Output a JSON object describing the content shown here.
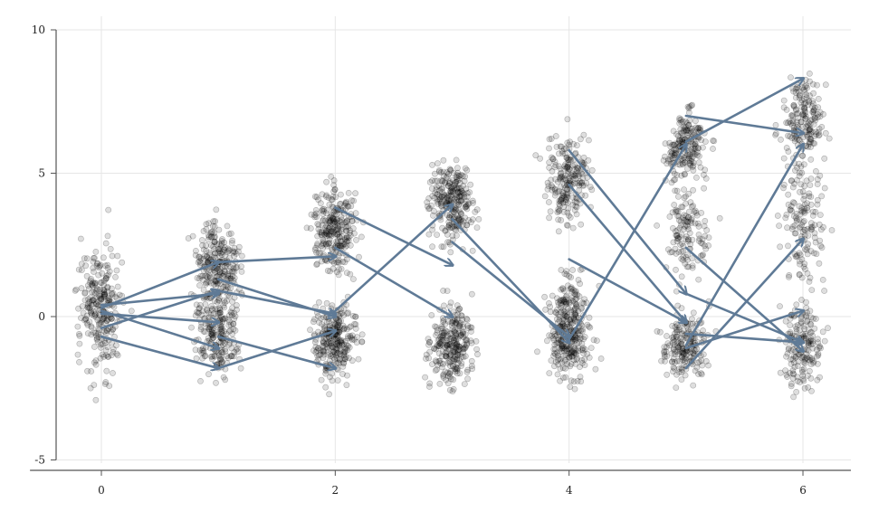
{
  "chart_data": {
    "type": "scatter",
    "xlim": [
      -0.75,
      6.4
    ],
    "ylim": [
      -5,
      10
    ],
    "x_ticks": [
      0,
      2,
      4,
      6
    ],
    "x_tick_labels": [
      "0",
      "2",
      "4",
      "6"
    ],
    "y_ticks": [
      -5,
      0,
      5,
      10
    ],
    "y_tick_labels": [
      "-5",
      "0",
      "5",
      "10"
    ],
    "grid": true,
    "point_color": "#000000",
    "arrow_color": "#5f7a96",
    "clusters": [
      {
        "x": 0,
        "center": 0.2,
        "spread": 1.0,
        "n": 260
      },
      {
        "x": 1,
        "center": 1.8,
        "spread": 0.7,
        "n": 230
      },
      {
        "x": 1,
        "center": -0.5,
        "spread": 0.8,
        "n": 230
      },
      {
        "x": 2,
        "center": 3.0,
        "spread": 0.7,
        "n": 260
      },
      {
        "x": 2,
        "center": -0.8,
        "spread": 0.7,
        "n": 260
      },
      {
        "x": 3,
        "center": 4.0,
        "spread": 0.7,
        "n": 260
      },
      {
        "x": 3,
        "center": -1.0,
        "spread": 0.7,
        "n": 260
      },
      {
        "x": 4,
        "center": 4.8,
        "spread": 0.8,
        "n": 210
      },
      {
        "x": 4,
        "center": 0.5,
        "spread": 0.6,
        "n": 110
      },
      {
        "x": 4,
        "center": -0.9,
        "spread": 0.6,
        "n": 210
      },
      {
        "x": 5,
        "center": 6.0,
        "spread": 0.6,
        "n": 190
      },
      {
        "x": 5,
        "center": 3.0,
        "spread": 0.8,
        "n": 130
      },
      {
        "x": 5,
        "center": -1.0,
        "spread": 0.6,
        "n": 190
      },
      {
        "x": 6,
        "center": 7.0,
        "spread": 0.7,
        "n": 170
      },
      {
        "x": 6,
        "center": 3.5,
        "spread": 1.2,
        "n": 150
      },
      {
        "x": 6,
        "center": -1.0,
        "spread": 0.7,
        "n": 170
      }
    ],
    "arrows": [
      {
        "x0": 0,
        "y0": 0.3,
        "x1": 1,
        "y1": 1.9
      },
      {
        "x0": 0,
        "y0": 0.4,
        "x1": 1,
        "y1": 0.8
      },
      {
        "x0": 0,
        "y0": -0.4,
        "x1": 1,
        "y1": 0.9
      },
      {
        "x0": 0,
        "y0": 0.1,
        "x1": 1,
        "y1": -0.2
      },
      {
        "x0": 0,
        "y0": 0.2,
        "x1": 1,
        "y1": -1.1
      },
      {
        "x0": 0,
        "y0": -0.7,
        "x1": 1,
        "y1": -1.8
      },
      {
        "x0": 1,
        "y0": 1.9,
        "x1": 2,
        "y1": 2.1
      },
      {
        "x0": 1,
        "y0": 0.9,
        "x1": 2,
        "y1": 0.1
      },
      {
        "x0": 1,
        "y0": 1.3,
        "x1": 2,
        "y1": 0.0
      },
      {
        "x0": 1,
        "y0": -0.7,
        "x1": 2,
        "y1": -1.8
      },
      {
        "x0": 1,
        "y0": -1.8,
        "x1": 2,
        "y1": -0.5
      },
      {
        "x0": 2,
        "y0": 3.8,
        "x1": 3,
        "y1": 1.8
      },
      {
        "x0": 2,
        "y0": 2.4,
        "x1": 3,
        "y1": 0.0
      },
      {
        "x0": 2,
        "y0": 0.2,
        "x1": 3,
        "y1": 3.9
      },
      {
        "x0": 3,
        "y0": 3.4,
        "x1": 4,
        "y1": -0.9
      },
      {
        "x0": 3,
        "y0": 2.6,
        "x1": 4,
        "y1": -0.7
      },
      {
        "x0": 4,
        "y0": -0.8,
        "x1": 5,
        "y1": 6.0
      },
      {
        "x0": 4,
        "y0": 5.8,
        "x1": 5,
        "y1": 0.8
      },
      {
        "x0": 4,
        "y0": 4.6,
        "x1": 5,
        "y1": -0.2
      },
      {
        "x0": 4,
        "y0": 2.0,
        "x1": 5,
        "y1": -0.2
      },
      {
        "x0": 5,
        "y0": 7.0,
        "x1": 6,
        "y1": 6.4
      },
      {
        "x0": 5,
        "y0": 6.1,
        "x1": 6,
        "y1": 8.3
      },
      {
        "x0": 5,
        "y0": 0.8,
        "x1": 6,
        "y1": -0.9
      },
      {
        "x0": 5,
        "y0": 2.4,
        "x1": 6,
        "y1": -1.2
      },
      {
        "x0": 5,
        "y0": -1.0,
        "x1": 6,
        "y1": 6.0
      },
      {
        "x0": 5,
        "y0": -1.8,
        "x1": 6,
        "y1": 2.7
      },
      {
        "x0": 5,
        "y0": -1.1,
        "x1": 6,
        "y1": 0.2
      },
      {
        "x0": 5,
        "y0": -0.6,
        "x1": 6,
        "y1": -0.9
      }
    ]
  }
}
